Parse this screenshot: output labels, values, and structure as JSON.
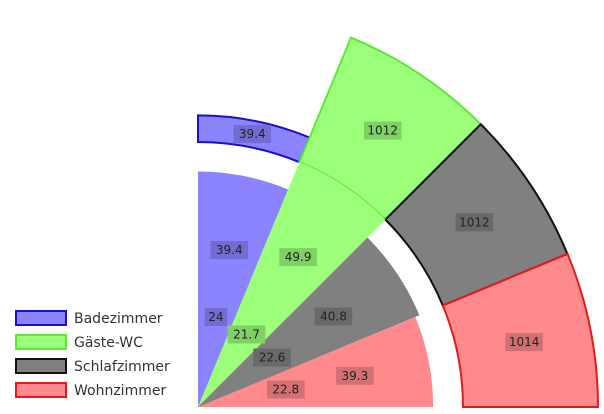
{
  "chart_data": {
    "type": "polar-area",
    "rings": [
      "inner",
      "middle",
      "outer"
    ],
    "series": [
      {
        "name": "Badezimmer",
        "values": [
          24,
          39.4,
          39.4
        ],
        "fill": "#8c84ff",
        "stroke": "#1a10c8"
      },
      {
        "name": "Gäste-WC",
        "values": [
          21.7,
          49.9,
          1012
        ],
        "fill": "#9cff7a",
        "stroke": "#5ee83a"
      },
      {
        "name": "Schlafzimmer",
        "values": [
          22.6,
          40.8,
          1012
        ],
        "fill": "#808080",
        "stroke": "#111111"
      },
      {
        "name": "Wohnzimmer",
        "values": [
          22.8,
          39.3,
          1014
        ],
        "fill": "#ff8a8e",
        "stroke": "#e41a1c"
      }
    ],
    "legend_position": "bottom-left"
  }
}
